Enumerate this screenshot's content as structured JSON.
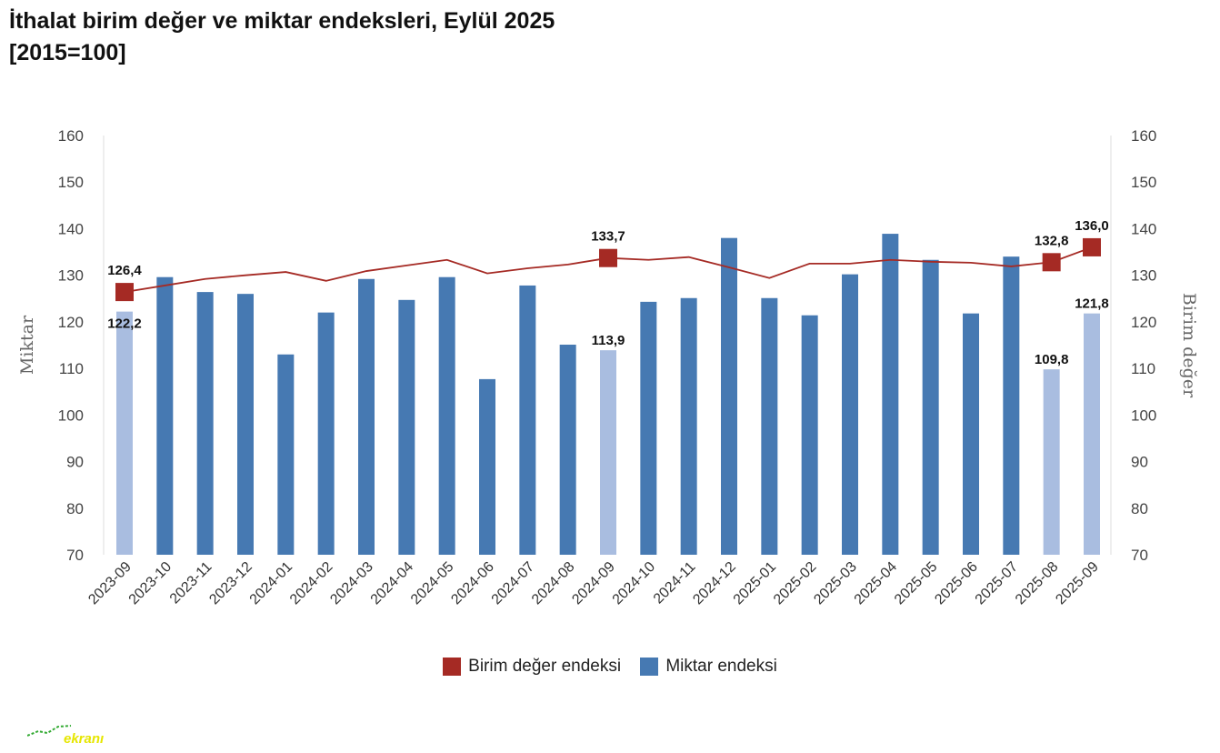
{
  "title_line1": "İthalat birim değer ve miktar endeksleri, Eylül 2025",
  "title_line2": "[2015=100]",
  "logo_text": "ekranı",
  "chart_data": {
    "type": "bar+line",
    "title": "İthalat birim değer ve miktar endeksleri, Eylül 2025 [2015=100]",
    "ylabel_left": "Miktar",
    "ylabel_right": "Birim değer",
    "ylim": [
      70,
      160
    ],
    "yticks": [
      70,
      80,
      90,
      100,
      110,
      120,
      130,
      140,
      150,
      160
    ],
    "categories": [
      "2023-09",
      "2023-10",
      "2023-11",
      "2023-12",
      "2024-01",
      "2024-02",
      "2024-03",
      "2024-04",
      "2024-05",
      "2024-06",
      "2024-07",
      "2024-08",
      "2024-09",
      "2024-10",
      "2024-11",
      "2024-12",
      "2025-01",
      "2025-02",
      "2025-03",
      "2025-04",
      "2025-05",
      "2025-06",
      "2025-07",
      "2025-08",
      "2025-09"
    ],
    "legend_position": "bottom",
    "series": [
      {
        "name": "Birim değer endeksi",
        "type": "line",
        "color": "#a52a24",
        "values": [
          126.4,
          127.8,
          129.2,
          130.0,
          130.7,
          128.8,
          130.9,
          132.1,
          133.3,
          130.4,
          131.5,
          132.3,
          133.7,
          133.3,
          133.9,
          131.7,
          129.4,
          132.5,
          132.5,
          133.3,
          132.9,
          132.7,
          131.9,
          132.8,
          136.0
        ],
        "markers": [
          0,
          12,
          23,
          24
        ],
        "labels": {
          "0": "126,4",
          "12": "133,7",
          "23": "132,8",
          "24": "136,0"
        }
      },
      {
        "name": "Miktar endeksi",
        "type": "bar",
        "color": "#4679b2",
        "highlight_color": "#a9bde0",
        "values": [
          122.2,
          129.6,
          126.4,
          126.0,
          113.0,
          122.0,
          129.2,
          124.7,
          129.6,
          107.7,
          127.8,
          115.1,
          113.9,
          124.3,
          125.1,
          138.0,
          125.1,
          121.4,
          130.2,
          138.9,
          133.3,
          121.8,
          134.0,
          109.8,
          121.8
        ],
        "highlighted": [
          0,
          12,
          23,
          24
        ],
        "labels": {
          "0": "122,2",
          "12": "113,9",
          "23": "109,8",
          "24": "121,8"
        }
      }
    ]
  }
}
